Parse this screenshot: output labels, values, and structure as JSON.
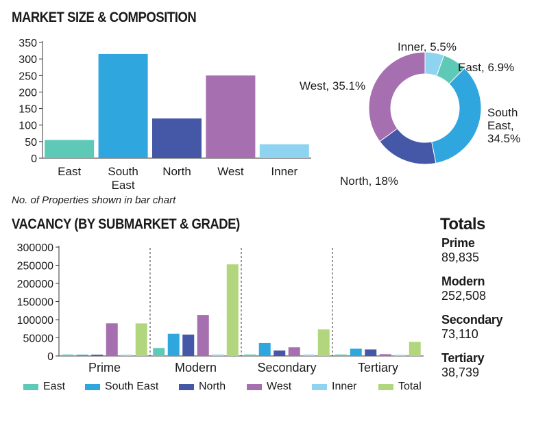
{
  "titles": {
    "market": "MARKET SIZE & COMPOSITION",
    "vacancy": "VACANCY (BY SUBMARKET & GRADE)",
    "totals": "Totals"
  },
  "note": "No. of Properties shown in bar chart",
  "colors": {
    "East": "#5ec9b6",
    "South East": "#2fa6dd",
    "North": "#4558a8",
    "West": "#a66fb0",
    "Inner": "#8ed3f0",
    "Total": "#b2d67e"
  },
  "totals": [
    {
      "label": "Prime",
      "value": "89,835"
    },
    {
      "label": "Modern",
      "value": "252,508"
    },
    {
      "label": "Secondary",
      "value": "73,110"
    },
    {
      "label": "Tertiary",
      "value": "38,739"
    }
  ],
  "chart_data": [
    {
      "type": "bar",
      "categories": [
        "East",
        "South East",
        "North",
        "West",
        "Inner"
      ],
      "category_lines": [
        [
          "East"
        ],
        [
          "South",
          "East"
        ],
        [
          "North"
        ],
        [
          "West"
        ],
        [
          "Inner"
        ]
      ],
      "values": [
        55,
        315,
        120,
        250,
        42
      ],
      "ylim": [
        0,
        350
      ],
      "yticks": [
        0,
        50,
        100,
        150,
        200,
        250,
        300,
        350
      ],
      "grid": false
    },
    {
      "type": "pie",
      "donut": true,
      "slices": [
        {
          "name": "Inner",
          "value": 5.5,
          "label": "Inner, 5.5%"
        },
        {
          "name": "East",
          "value": 6.9,
          "label": "East, 6.9%"
        },
        {
          "name": "South East",
          "value": 34.5,
          "label": "South East, 34.5%",
          "label_lines": [
            "South",
            "East,",
            "34.5%"
          ]
        },
        {
          "name": "North",
          "value": 18,
          "label": "North, 18%"
        },
        {
          "name": "West",
          "value": 35.1,
          "label": "West, 35.1%"
        }
      ]
    },
    {
      "type": "bar",
      "categories": [
        "Prime",
        "Modern",
        "Secondary",
        "Tertiary"
      ],
      "series": [
        {
          "name": "East",
          "values": [
            4000,
            22000,
            4000,
            4000
          ]
        },
        {
          "name": "South East",
          "values": [
            3500,
            61000,
            36000,
            20000
          ]
        },
        {
          "name": "North",
          "values": [
            3500,
            59000,
            15000,
            18000
          ]
        },
        {
          "name": "West",
          "values": [
            90000,
            113000,
            24000,
            5000
          ]
        },
        {
          "name": "Inner",
          "values": [
            3500,
            4000,
            4000,
            3000
          ]
        },
        {
          "name": "Total",
          "values": [
            89835,
            252508,
            73110,
            38739
          ]
        }
      ],
      "ylim": [
        0,
        300000
      ],
      "yticks": [
        0,
        50000,
        100000,
        150000,
        200000,
        250000,
        300000
      ],
      "legend": "bottom",
      "grid": false
    }
  ]
}
